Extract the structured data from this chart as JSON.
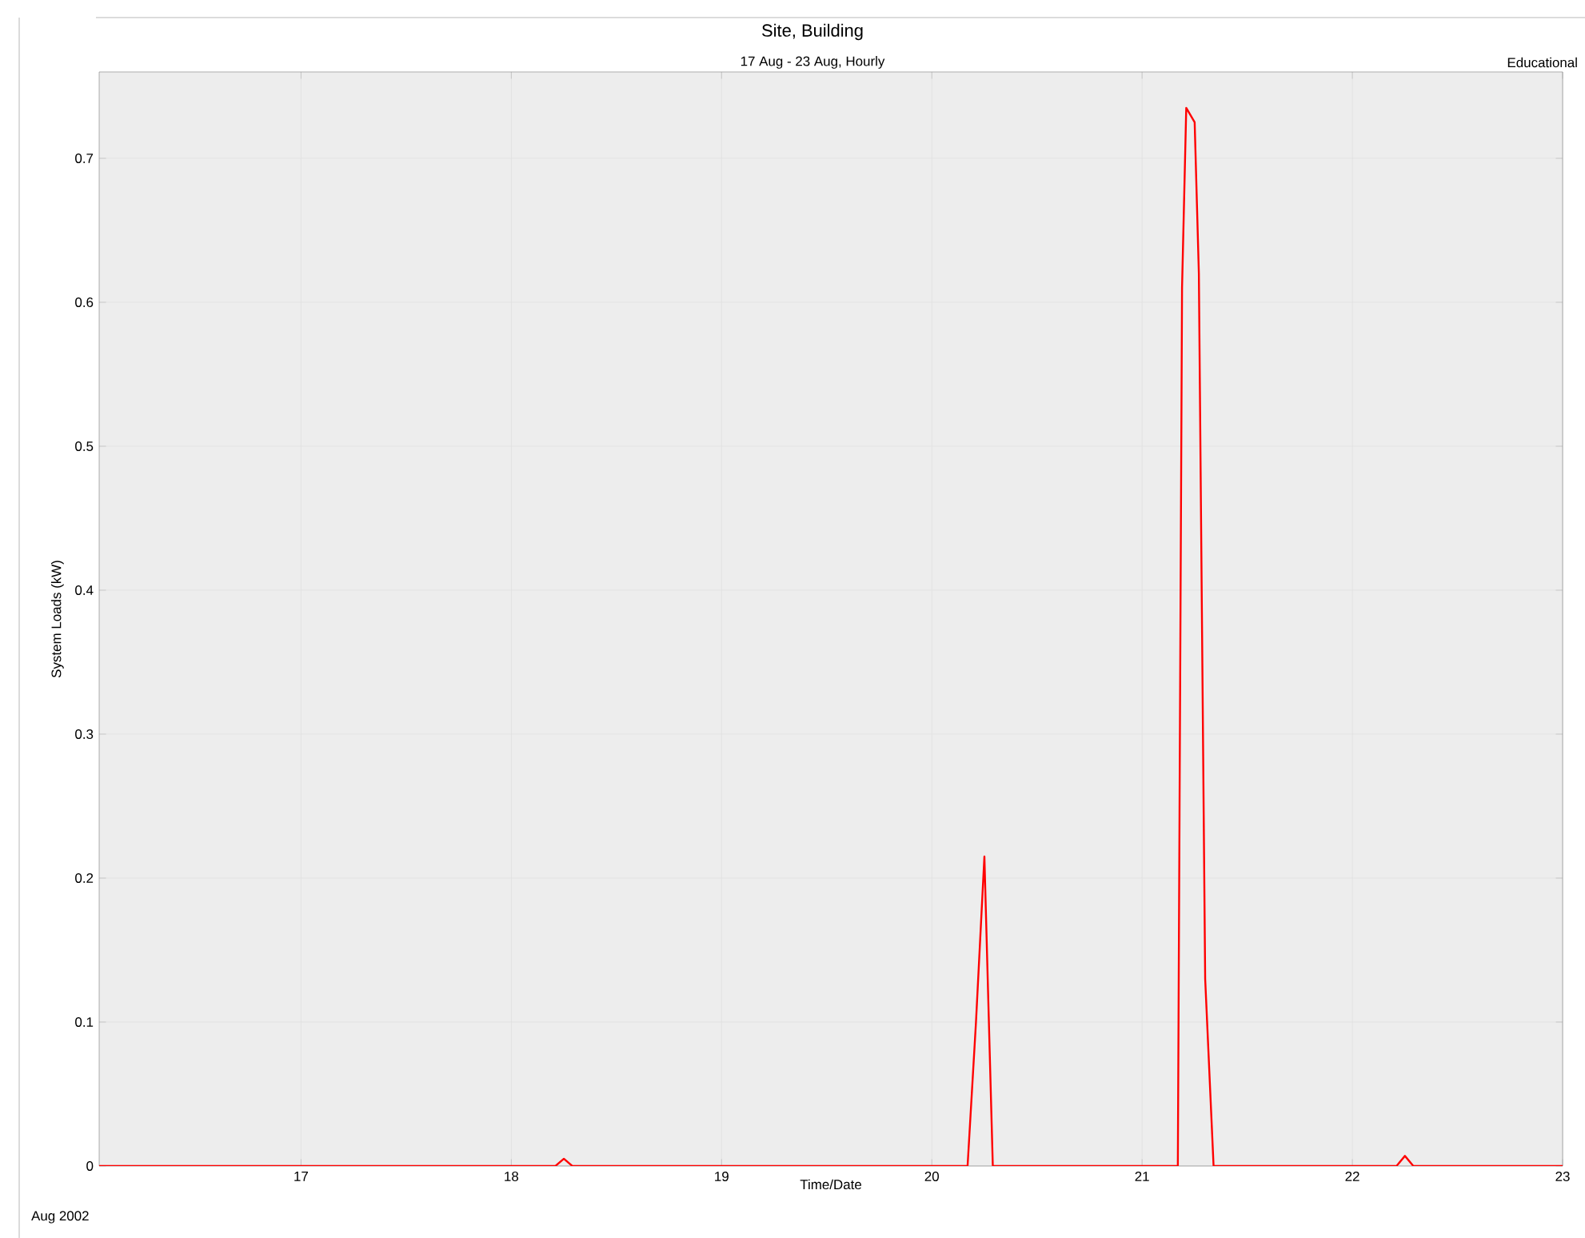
{
  "chart_data": {
    "type": "line",
    "title": "Site, Building",
    "subtitle": "17 Aug - 23 Aug, Hourly",
    "xlabel": "Time/Date",
    "ylabel": "System Loads (kW)",
    "annotations": [
      "Educational",
      "Aug  2002"
    ],
    "x": [
      16.04,
      18.21,
      18.25,
      18.29,
      20.17,
      20.21,
      20.25,
      20.29,
      21.17,
      21.19,
      21.21,
      21.25,
      21.27,
      21.3,
      21.34,
      22.21,
      22.25,
      22.29,
      23.0
    ],
    "series": [
      {
        "color": "#ff0000",
        "values": [
          0,
          0,
          0.005,
          0,
          0,
          0.1,
          0.215,
          0,
          0,
          0.61,
          0.735,
          0.725,
          0.62,
          0.13,
          0,
          0,
          0.007,
          0,
          0
        ]
      }
    ],
    "xlim": [
      16.04,
      23.0
    ],
    "xticks": [
      17,
      18,
      19,
      20,
      21,
      22,
      23
    ],
    "ylim": [
      0,
      0.76
    ],
    "yticks": [
      0,
      0.1,
      0.2,
      0.3,
      0.4,
      0.5,
      0.6,
      0.7
    ],
    "grid": true,
    "marker": "none",
    "line_style": "solid"
  }
}
